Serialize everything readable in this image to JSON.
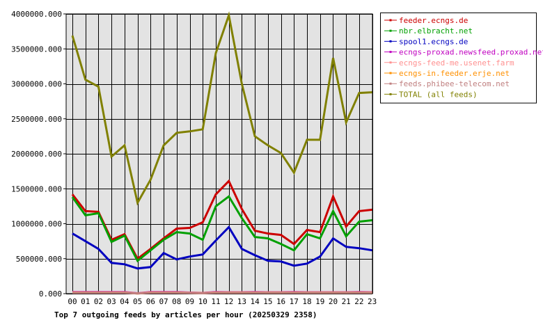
{
  "chart_data": {
    "type": "line",
    "title": "Top 7 outgoing feeds by articles per hour (20250329 2358)",
    "xlabel": "",
    "ylabel": "",
    "categories": [
      "00",
      "01",
      "02",
      "03",
      "04",
      "05",
      "06",
      "07",
      "08",
      "09",
      "10",
      "11",
      "12",
      "13",
      "14",
      "15",
      "16",
      "17",
      "18",
      "19",
      "20",
      "21",
      "22",
      "23"
    ],
    "ylim": [
      0,
      4000000
    ],
    "yticks": [
      {
        "value": 0,
        "label": "0.000"
      },
      {
        "value": 500000,
        "label": "500000.000"
      },
      {
        "value": 1000000,
        "label": "1000000.000"
      },
      {
        "value": 1500000,
        "label": "1500000.000"
      },
      {
        "value": 2000000,
        "label": "2000000.000"
      },
      {
        "value": 2500000,
        "label": "2500000.000"
      },
      {
        "value": 3000000,
        "label": "3000000.000"
      },
      {
        "value": 3500000,
        "label": "3500000.000"
      },
      {
        "value": 4000000,
        "label": "4000000.000"
      }
    ],
    "grid": true,
    "legend_position": "right",
    "background_color": "#e3e3e3",
    "series": [
      {
        "name": "feeder.ecngs.de",
        "color": "#cc0000",
        "values": [
          1420000,
          1180000,
          1170000,
          770000,
          850000,
          500000,
          640000,
          790000,
          930000,
          940000,
          1020000,
          1420000,
          1610000,
          1210000,
          900000,
          860000,
          840000,
          710000,
          910000,
          880000,
          1390000,
          960000,
          1180000,
          1200000
        ]
      },
      {
        "name": "nbr.elbracht.net",
        "color": "#00a000",
        "values": [
          1380000,
          1120000,
          1150000,
          740000,
          830000,
          470000,
          620000,
          770000,
          880000,
          860000,
          770000,
          1250000,
          1390000,
          1080000,
          810000,
          790000,
          710000,
          620000,
          850000,
          790000,
          1180000,
          820000,
          1030000,
          1050000
        ]
      },
      {
        "name": "spool1.ecngs.de",
        "color": "#0000c0",
        "values": [
          860000,
          750000,
          640000,
          440000,
          420000,
          360000,
          380000,
          580000,
          490000,
          530000,
          560000,
          760000,
          950000,
          640000,
          550000,
          470000,
          460000,
          400000,
          430000,
          530000,
          790000,
          670000,
          650000,
          620000
        ]
      },
      {
        "name": "ecngs-proxad.newsfeed.proxad.net",
        "color": "#c000c0",
        "values": [
          22000,
          22000,
          22000,
          22000,
          22000,
          5000,
          22000,
          22000,
          22000,
          15000,
          10000,
          22000,
          20000,
          20000,
          22000,
          20000,
          20000,
          22000,
          20000,
          20000,
          20000,
          20000,
          22000,
          20000
        ]
      },
      {
        "name": "ecngs-feed-me.usenet.farm",
        "color": "#ff9090",
        "values": [
          18000,
          18000,
          18000,
          18000,
          18000,
          3000,
          18000,
          18000,
          18000,
          12000,
          8000,
          18000,
          17000,
          17000,
          18000,
          17000,
          17000,
          18000,
          17000,
          17000,
          17000,
          17000,
          18000,
          17000
        ]
      },
      {
        "name": "ecngs-in.feeder.erje.net",
        "color": "#ff9000",
        "values": [
          15000,
          15000,
          15000,
          15000,
          15000,
          2000,
          15000,
          15000,
          15000,
          10000,
          6000,
          15000,
          14000,
          14000,
          15000,
          14000,
          14000,
          15000,
          14000,
          14000,
          14000,
          14000,
          15000,
          14000
        ]
      },
      {
        "name": "feeds.phibee-telecom.net",
        "color": "#c08080",
        "values": [
          13000,
          13000,
          13000,
          13000,
          13000,
          2000,
          13000,
          13000,
          13000,
          9000,
          5000,
          13000,
          12000,
          12000,
          13000,
          12000,
          12000,
          13000,
          12000,
          12000,
          12000,
          12000,
          13000,
          12000
        ]
      },
      {
        "name": "TOTAL (all feeds)",
        "color": "#808000",
        "values": [
          3690000,
          3060000,
          2960000,
          1960000,
          2120000,
          1300000,
          1630000,
          2120000,
          2300000,
          2320000,
          2350000,
          3440000,
          3980000,
          3000000,
          2250000,
          2120000,
          2010000,
          1730000,
          2200000,
          2200000,
          3370000,
          2450000,
          2870000,
          2880000
        ]
      }
    ]
  }
}
